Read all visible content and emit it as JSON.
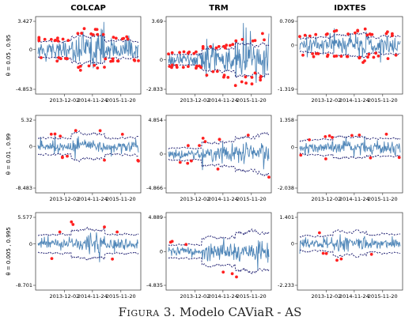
{
  "caption": {
    "label": "Figura 3.",
    "text": "Modelo CAViaR - AS"
  },
  "colors": {
    "returns": "#4f86b8",
    "var": "#1a1a6e",
    "violation": "#ff2020",
    "frame": "#333333"
  },
  "chart_data": {
    "type": "line",
    "columns": [
      "COLCAP",
      "TRM",
      "IDXTES"
    ],
    "rows": [
      "θ = 0.05 , 0.95",
      "θ = 0.01 , 0.99",
      "θ = 0.005 , 0.995"
    ],
    "x_ticks": [
      "2013-12-02",
      "2014-11-24",
      "2015-11-20"
    ],
    "x_range": [
      "2013-01-01",
      "2016-06-30"
    ],
    "series_style": {
      "returns": "solid line",
      "var_bounds": "dashed line",
      "violations": "points"
    },
    "panels": [
      {
        "column": "COLCAP",
        "row": "θ = 0.05 , 0.95",
        "y_ticks": [
          "3.427",
          "0",
          "-4.853"
        ],
        "ylim": [
          -4.853,
          3.427
        ],
        "vol": [
          0.9,
          1.4,
          0.9
        ],
        "bound": 1.7,
        "violations": 48
      },
      {
        "column": "TRM",
        "row": "θ = 0.05 , 0.95",
        "y_ticks": [
          "3.69",
          "0",
          "-2.833"
        ],
        "ylim": [
          -2.833,
          3.69
        ],
        "vol": [
          0.45,
          0.9,
          1.3
        ],
        "bound": 1.7,
        "violations": 52
      },
      {
        "column": "IDXTES",
        "row": "θ = 0.05 , 0.95",
        "y_ticks": [
          "0.709",
          "0",
          "-1.319"
        ],
        "ylim": [
          -1.319,
          0.709
        ],
        "vol": [
          0.2,
          0.28,
          0.22
        ],
        "bound": 1.7,
        "violations": 44
      },
      {
        "column": "COLCAP",
        "row": "θ = 0.01 , 0.99",
        "y_ticks": [
          "5.32",
          "0",
          "-8.483"
        ],
        "ylim": [
          -8.483,
          5.32
        ],
        "vol": [
          0.9,
          1.4,
          0.9
        ],
        "bound": 2.9,
        "violations": 12
      },
      {
        "column": "TRM",
        "row": "θ = 0.01 , 0.99",
        "y_ticks": [
          "4.854",
          "0",
          "-4.866"
        ],
        "ylim": [
          -4.866,
          4.854
        ],
        "vol": [
          0.45,
          0.9,
          1.3
        ],
        "bound": 2.9,
        "violations": 12
      },
      {
        "column": "IDXTES",
        "row": "θ = 0.01 , 0.99",
        "y_ticks": [
          "1.358",
          "0",
          "-2.038"
        ],
        "ylim": [
          -2.038,
          1.358
        ],
        "vol": [
          0.2,
          0.28,
          0.22
        ],
        "bound": 2.9,
        "violations": 11
      },
      {
        "column": "COLCAP",
        "row": "θ = 0.005 , 0.995",
        "y_ticks": [
          "5.577",
          "0",
          "-8.701"
        ],
        "ylim": [
          -8.701,
          5.577
        ],
        "vol": [
          0.9,
          1.4,
          0.9
        ],
        "bound": 3.3,
        "violations": 7
      },
      {
        "column": "TRM",
        "row": "θ = 0.005 , 0.995",
        "y_ticks": [
          "4.889",
          "0",
          "-4.835"
        ],
        "ylim": [
          -4.835,
          4.889
        ],
        "vol": [
          0.45,
          0.9,
          1.3
        ],
        "bound": 3.3,
        "violations": 6
      },
      {
        "column": "IDXTES",
        "row": "θ = 0.005 , 0.995",
        "y_ticks": [
          "1.401",
          "0",
          "-2.233"
        ],
        "ylim": [
          -2.233,
          1.401
        ],
        "vol": [
          0.2,
          0.28,
          0.22
        ],
        "bound": 3.3,
        "violations": 6
      }
    ]
  }
}
